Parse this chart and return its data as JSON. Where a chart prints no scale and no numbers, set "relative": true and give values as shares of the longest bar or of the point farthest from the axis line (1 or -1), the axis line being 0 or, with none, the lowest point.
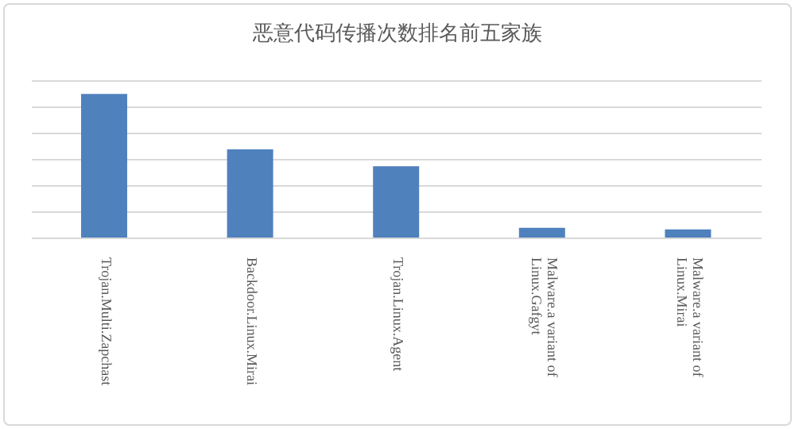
{
  "chart_data": {
    "type": "bar",
    "title": "恶意代码传播次数排名前五家族",
    "categories": [
      "Trojan.Multi.Zapchast",
      "Backdoor.Linux.Mirai",
      "Trojan.Linux.Agent",
      "Malware.a variant of Linux.Gafgyt",
      "Malware.a variant of Linux.Mirai"
    ],
    "values": [
      1,
      0.617,
      0.5,
      0.073,
      0.062
    ],
    "color": "#4f81bd",
    "relative": true,
    "grid": "y"
  }
}
